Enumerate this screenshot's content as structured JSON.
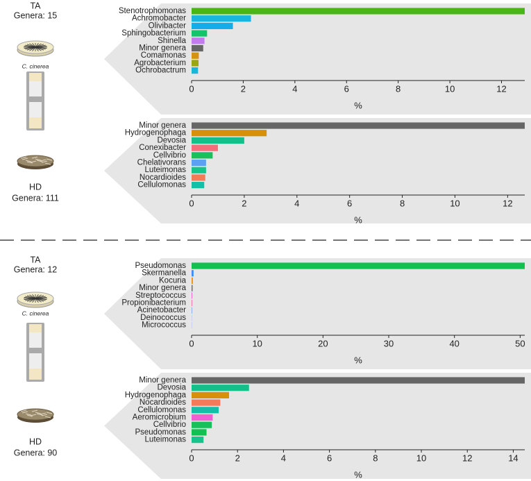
{
  "side": [
    {
      "top": "TA",
      "top_genera": "Genera:  15",
      "organism": "C. cinerea",
      "bottom": "HD",
      "bottom_genera": "Genera: 111"
    },
    {
      "top": "TA",
      "top_genera": "Genera:  12",
      "organism": "C. cinerea",
      "bottom": "HD",
      "bottom_genera": "Genera: 90"
    }
  ],
  "chart_data": [
    {
      "type": "bar",
      "orientation": "horizontal",
      "xlabel": "%",
      "categories": [
        "Stenotrophomonas",
        "Achromobacter",
        "Olivibacter",
        "Sphingobacterium",
        "Shinella",
        "Minor genera",
        "Comamonas",
        "Agrobacterium",
        "Ochrobactrum"
      ],
      "values": [
        12.9,
        2.3,
        1.6,
        0.6,
        0.5,
        0.45,
        0.28,
        0.27,
        0.25
      ],
      "colors": [
        "#4ab516",
        "#19b4e0",
        "#12aee6",
        "#13c46e",
        "#c37cf0",
        "#666666",
        "#d4930c",
        "#9aa612",
        "#1ab6d6"
      ],
      "xlim": [
        0,
        12.9
      ],
      "xticks": [
        0,
        2,
        4,
        6,
        8,
        10,
        12
      ]
    },
    {
      "type": "bar",
      "orientation": "horizontal",
      "xlabel": "%",
      "categories": [
        "Minor genera",
        "Hydrogenophaga",
        "Devosia",
        "Conexibacter",
        "Cellvibrio",
        "Chelativorans",
        "Luteimonas",
        "Nocardioides",
        "Cellulomonas"
      ],
      "values": [
        12.65,
        2.85,
        2.0,
        1.0,
        0.8,
        0.55,
        0.55,
        0.52,
        0.48
      ],
      "colors": [
        "#666666",
        "#d88f0a",
        "#14c08a",
        "#f36e7a",
        "#17c05a",
        "#5aa0f5",
        "#16c38a",
        "#f47a5a",
        "#14bfa8"
      ],
      "xlim": [
        0,
        12.65
      ],
      "xticks": [
        0,
        2,
        4,
        6,
        8,
        10,
        12
      ]
    },
    {
      "type": "bar",
      "orientation": "horizontal",
      "xlabel": "%",
      "categories": [
        "Pseudomonas",
        "Skermanella",
        "Kocuria",
        "Minor genera",
        "Streptococcus",
        "Propionibacterium",
        "Acinetobacter",
        "Deinococcus",
        "Micrococcus"
      ],
      "values": [
        50.7,
        0.3,
        0.2,
        0.15,
        0.1,
        0.1,
        0.08,
        0.05,
        0.05
      ],
      "colors": [
        "#12c050",
        "#3a90f0",
        "#e8941a",
        "#666666",
        "#f060d0",
        "#f070b0",
        "#70a0f0",
        "#a0c0f0",
        "#a0c0f0"
      ],
      "xlim": [
        0,
        50.7
      ],
      "xticks": [
        0,
        10,
        20,
        30,
        40,
        50
      ]
    },
    {
      "type": "bar",
      "orientation": "horizontal",
      "xlabel": "%",
      "categories": [
        "Minor genera",
        "Devosia",
        "Hydrogenophaga",
        "Nocardioides",
        "Cellulomonas",
        "Aeromicrobium",
        "Cellvibrio",
        "Pseudomonas",
        "Luteimonas"
      ],
      "values": [
        14.5,
        2.5,
        1.63,
        1.25,
        1.18,
        0.92,
        0.88,
        0.65,
        0.52
      ],
      "colors": [
        "#666666",
        "#14c08a",
        "#d88f0a",
        "#f47a5a",
        "#14bfa8",
        "#f060d0",
        "#17c05a",
        "#12c050",
        "#16c38a"
      ],
      "xlim": [
        0,
        14.5
      ],
      "xticks": [
        0,
        2,
        4,
        6,
        8,
        10,
        12,
        14
      ]
    }
  ]
}
